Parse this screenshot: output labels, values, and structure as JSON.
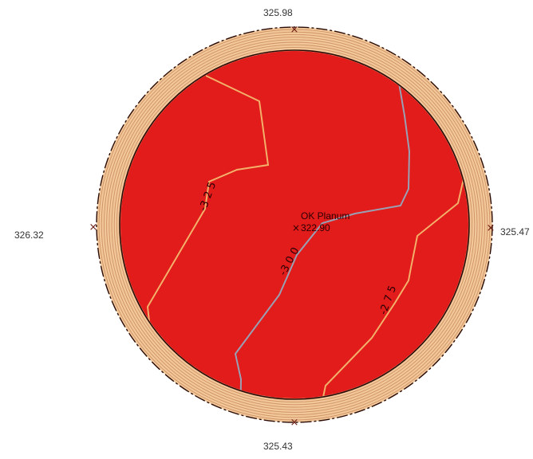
{
  "elevations": {
    "top": "325.98",
    "left": "326.32",
    "right": "325.47",
    "bottom": "325.43"
  },
  "center": {
    "title": "OK Planum",
    "value": "322.90"
  },
  "contours": [
    {
      "label": "-3 2 5",
      "color": "#f3b06a"
    },
    {
      "label": "-3 0 0",
      "color": "#9aa0b4"
    },
    {
      "label": "-2 7 5",
      "color": "#f3b06a"
    }
  ],
  "colors": {
    "fill": "#e21b1b",
    "rim_light": "#f2c79a",
    "rim_dark": "#c88a5a",
    "outline": "#2a0a05",
    "marker": "#6b1a10"
  },
  "icons": {
    "marker": "cross-marker-icon"
  }
}
